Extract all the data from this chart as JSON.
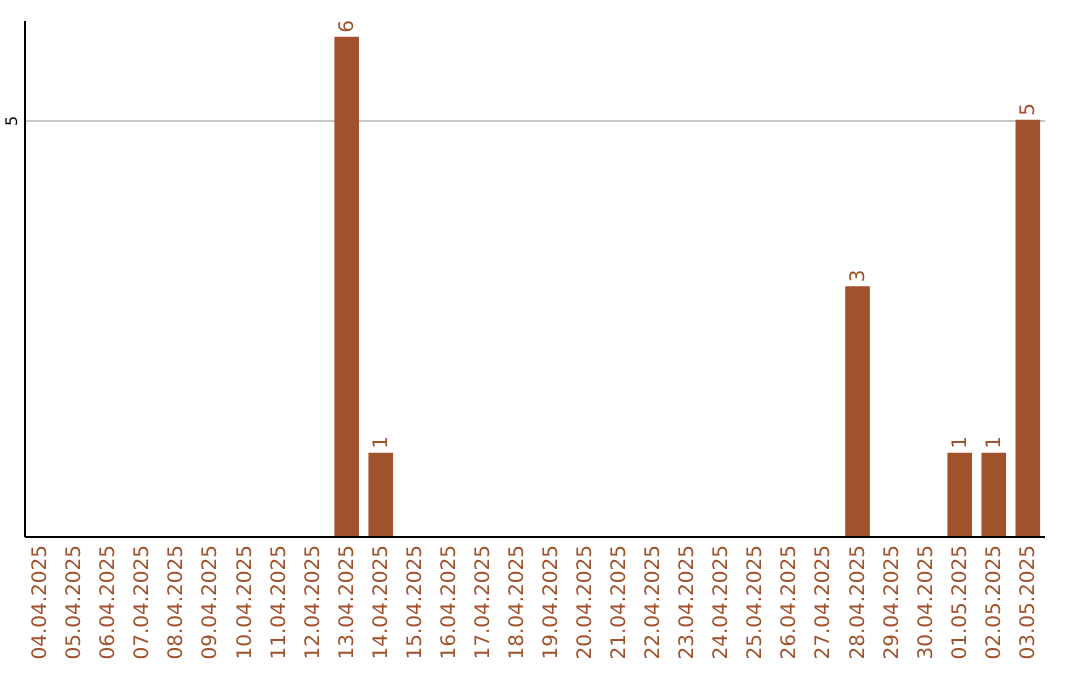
{
  "chart_data": {
    "type": "bar",
    "categories": [
      "04.04.2025",
      "05.04.2025",
      "06.04.2025",
      "07.04.2025",
      "08.04.2025",
      "09.04.2025",
      "10.04.2025",
      "11.04.2025",
      "12.04.2025",
      "13.04.2025",
      "14.04.2025",
      "15.04.2025",
      "16.04.2025",
      "17.04.2025",
      "18.04.2025",
      "19.04.2025",
      "20.04.2025",
      "21.04.2025",
      "22.04.2025",
      "23.04.2025",
      "24.04.2025",
      "25.04.2025",
      "26.04.2025",
      "27.04.2025",
      "28.04.2025",
      "29.04.2025",
      "30.04.2025",
      "01.05.2025",
      "02.05.2025",
      "03.05.2025"
    ],
    "values": [
      0,
      0,
      0,
      0,
      0,
      0,
      0,
      0,
      0,
      6,
      1,
      0,
      0,
      0,
      0,
      0,
      0,
      0,
      0,
      0,
      0,
      0,
      0,
      0,
      3,
      0,
      0,
      1,
      1,
      5
    ],
    "value_labels": [
      null,
      null,
      null,
      null,
      null,
      null,
      null,
      null,
      null,
      "6",
      "1",
      null,
      null,
      null,
      null,
      null,
      null,
      null,
      null,
      null,
      null,
      null,
      null,
      null,
      "3",
      null,
      null,
      "1",
      "1",
      "5"
    ],
    "color": "#a0522d",
    "ylim": [
      0,
      6.2
    ],
    "yticks": [
      5
    ],
    "grid": "y"
  }
}
